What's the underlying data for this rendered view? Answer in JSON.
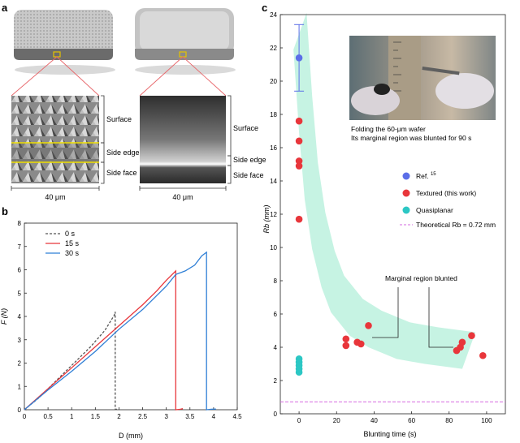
{
  "panel_a": {
    "letter": "a",
    "left_labels": [
      "Surface",
      "Side edge",
      "Side face"
    ],
    "right_labels": [
      "Surface",
      "Side edge",
      "Side face"
    ],
    "left_scale": "40 μm",
    "right_scale": "40 μm"
  },
  "panel_b": {
    "letter": "b",
    "xlabel": "D (mm)",
    "ylabel": "F (N)",
    "legend": [
      "0 s",
      "15 s",
      "30 s"
    ]
  },
  "panel_c": {
    "letter": "c",
    "xlabel": "Blunting time (s)",
    "ylabel": "Rb (mm)",
    "photo_caption_1": "Folding the 60-μm wafer",
    "photo_caption_2": "Its marginal region was blunted for 90 s",
    "annotation": "Marginal region blunted",
    "legend": {
      "ref": "Ref.",
      "ref_sup": "15",
      "textured": "Textured (this work)",
      "quasi": "Quasiplanar",
      "theory": "Theoretical Rb = 0.72 mm"
    }
  },
  "colors": {
    "blue_point": "#5b6ee8",
    "red_point": "#e8363b",
    "teal_point": "#2cc7c4",
    "band": "#b8f0dc",
    "theory_line": "#d66be0",
    "curve_0s": "#555555",
    "curve_15s": "#e8363b",
    "curve_30s": "#2f7fd6"
  },
  "chart_data": [
    {
      "type": "line",
      "panel": "b",
      "xlabel": "D (mm)",
      "ylabel": "F (N)",
      "xlim": [
        0,
        4.5
      ],
      "ylim": [
        0,
        8
      ],
      "xticks": [
        0,
        0.5,
        1.0,
        1.5,
        2.0,
        2.5,
        3.0,
        3.5,
        4.0,
        4.5
      ],
      "yticks": [
        0,
        1,
        2,
        3,
        4,
        5,
        6,
        7,
        8
      ],
      "series": [
        {
          "name": "0 s",
          "style": "dashed",
          "points": [
            [
              0,
              0
            ],
            [
              0.3,
              0.5
            ],
            [
              0.6,
              1.1
            ],
            [
              1.0,
              1.9
            ],
            [
              1.4,
              2.7
            ],
            [
              1.7,
              3.4
            ],
            [
              1.9,
              4.05
            ],
            [
              1.92,
              4.2
            ],
            [
              1.92,
              0.02
            ],
            [
              2.0,
              0.02
            ]
          ]
        },
        {
          "name": "15 s",
          "style": "solid",
          "points": [
            [
              0,
              0
            ],
            [
              0.5,
              0.9
            ],
            [
              1.0,
              1.8
            ],
            [
              1.5,
              2.7
            ],
            [
              2.0,
              3.6
            ],
            [
              2.5,
              4.5
            ],
            [
              2.8,
              5.1
            ],
            [
              3.0,
              5.55
            ],
            [
              3.2,
              5.95
            ],
            [
              3.2,
              0.0
            ],
            [
              3.3,
              0.02
            ],
            [
              3.35,
              0.05
            ]
          ]
        },
        {
          "name": "30 s",
          "style": "solid",
          "points": [
            [
              0,
              0
            ],
            [
              0.5,
              0.85
            ],
            [
              1.0,
              1.65
            ],
            [
              1.5,
              2.5
            ],
            [
              2.0,
              3.45
            ],
            [
              2.5,
              4.3
            ],
            [
              3.0,
              5.3
            ],
            [
              3.2,
              5.8
            ],
            [
              3.4,
              5.95
            ],
            [
              3.6,
              6.2
            ],
            [
              3.75,
              6.6
            ],
            [
              3.85,
              6.75
            ],
            [
              3.85,
              0.0
            ],
            [
              3.95,
              0.02
            ],
            [
              4.05,
              0.03
            ]
          ]
        }
      ]
    },
    {
      "type": "scatter",
      "panel": "c",
      "xlabel": "Blunting time (s)",
      "ylabel": "Rb (mm)",
      "xlim": [
        -10,
        110
      ],
      "ylim": [
        0,
        24
      ],
      "xticks": [
        0,
        20,
        40,
        60,
        80,
        100
      ],
      "yticks": [
        0,
        2,
        4,
        6,
        8,
        10,
        12,
        14,
        16,
        18,
        20,
        22,
        24
      ],
      "series": [
        {
          "name": "Ref. 15",
          "points": [
            [
              0,
              21.4
            ]
          ],
          "error": [
            [
              0,
              19.4,
              23.4
            ]
          ]
        },
        {
          "name": "Textured (this work)",
          "points": [
            [
              0,
              17.6
            ],
            [
              0,
              16.4
            ],
            [
              0,
              15.2
            ],
            [
              0,
              14.9
            ],
            [
              0,
              11.7
            ],
            [
              25,
              4.5
            ],
            [
              25,
              4.1
            ],
            [
              31,
              4.3
            ],
            [
              33,
              4.2
            ],
            [
              37,
              5.3
            ],
            [
              84,
              3.8
            ],
            [
              86,
              4.0
            ],
            [
              87,
              4.3
            ],
            [
              92,
              4.7
            ],
            [
              98,
              3.5
            ]
          ]
        },
        {
          "name": "Quasiplanar",
          "points": [
            [
              0,
              3.3
            ],
            [
              0,
              3.1
            ],
            [
              0,
              2.9
            ],
            [
              0,
              2.7
            ],
            [
              0,
              2.5
            ]
          ]
        }
      ],
      "reference_line": {
        "name": "Theoretical Rb = 0.72 mm",
        "y": 0.72
      },
      "band_center": [
        [
          0,
          23
        ],
        [
          3,
          18
        ],
        [
          6,
          14
        ],
        [
          10,
          11
        ],
        [
          15,
          8.7
        ],
        [
          20,
          7.2
        ],
        [
          30,
          5.8
        ],
        [
          40,
          5.1
        ],
        [
          55,
          4.4
        ],
        [
          70,
          4.1
        ],
        [
          90,
          3.8
        ]
      ]
    }
  ]
}
